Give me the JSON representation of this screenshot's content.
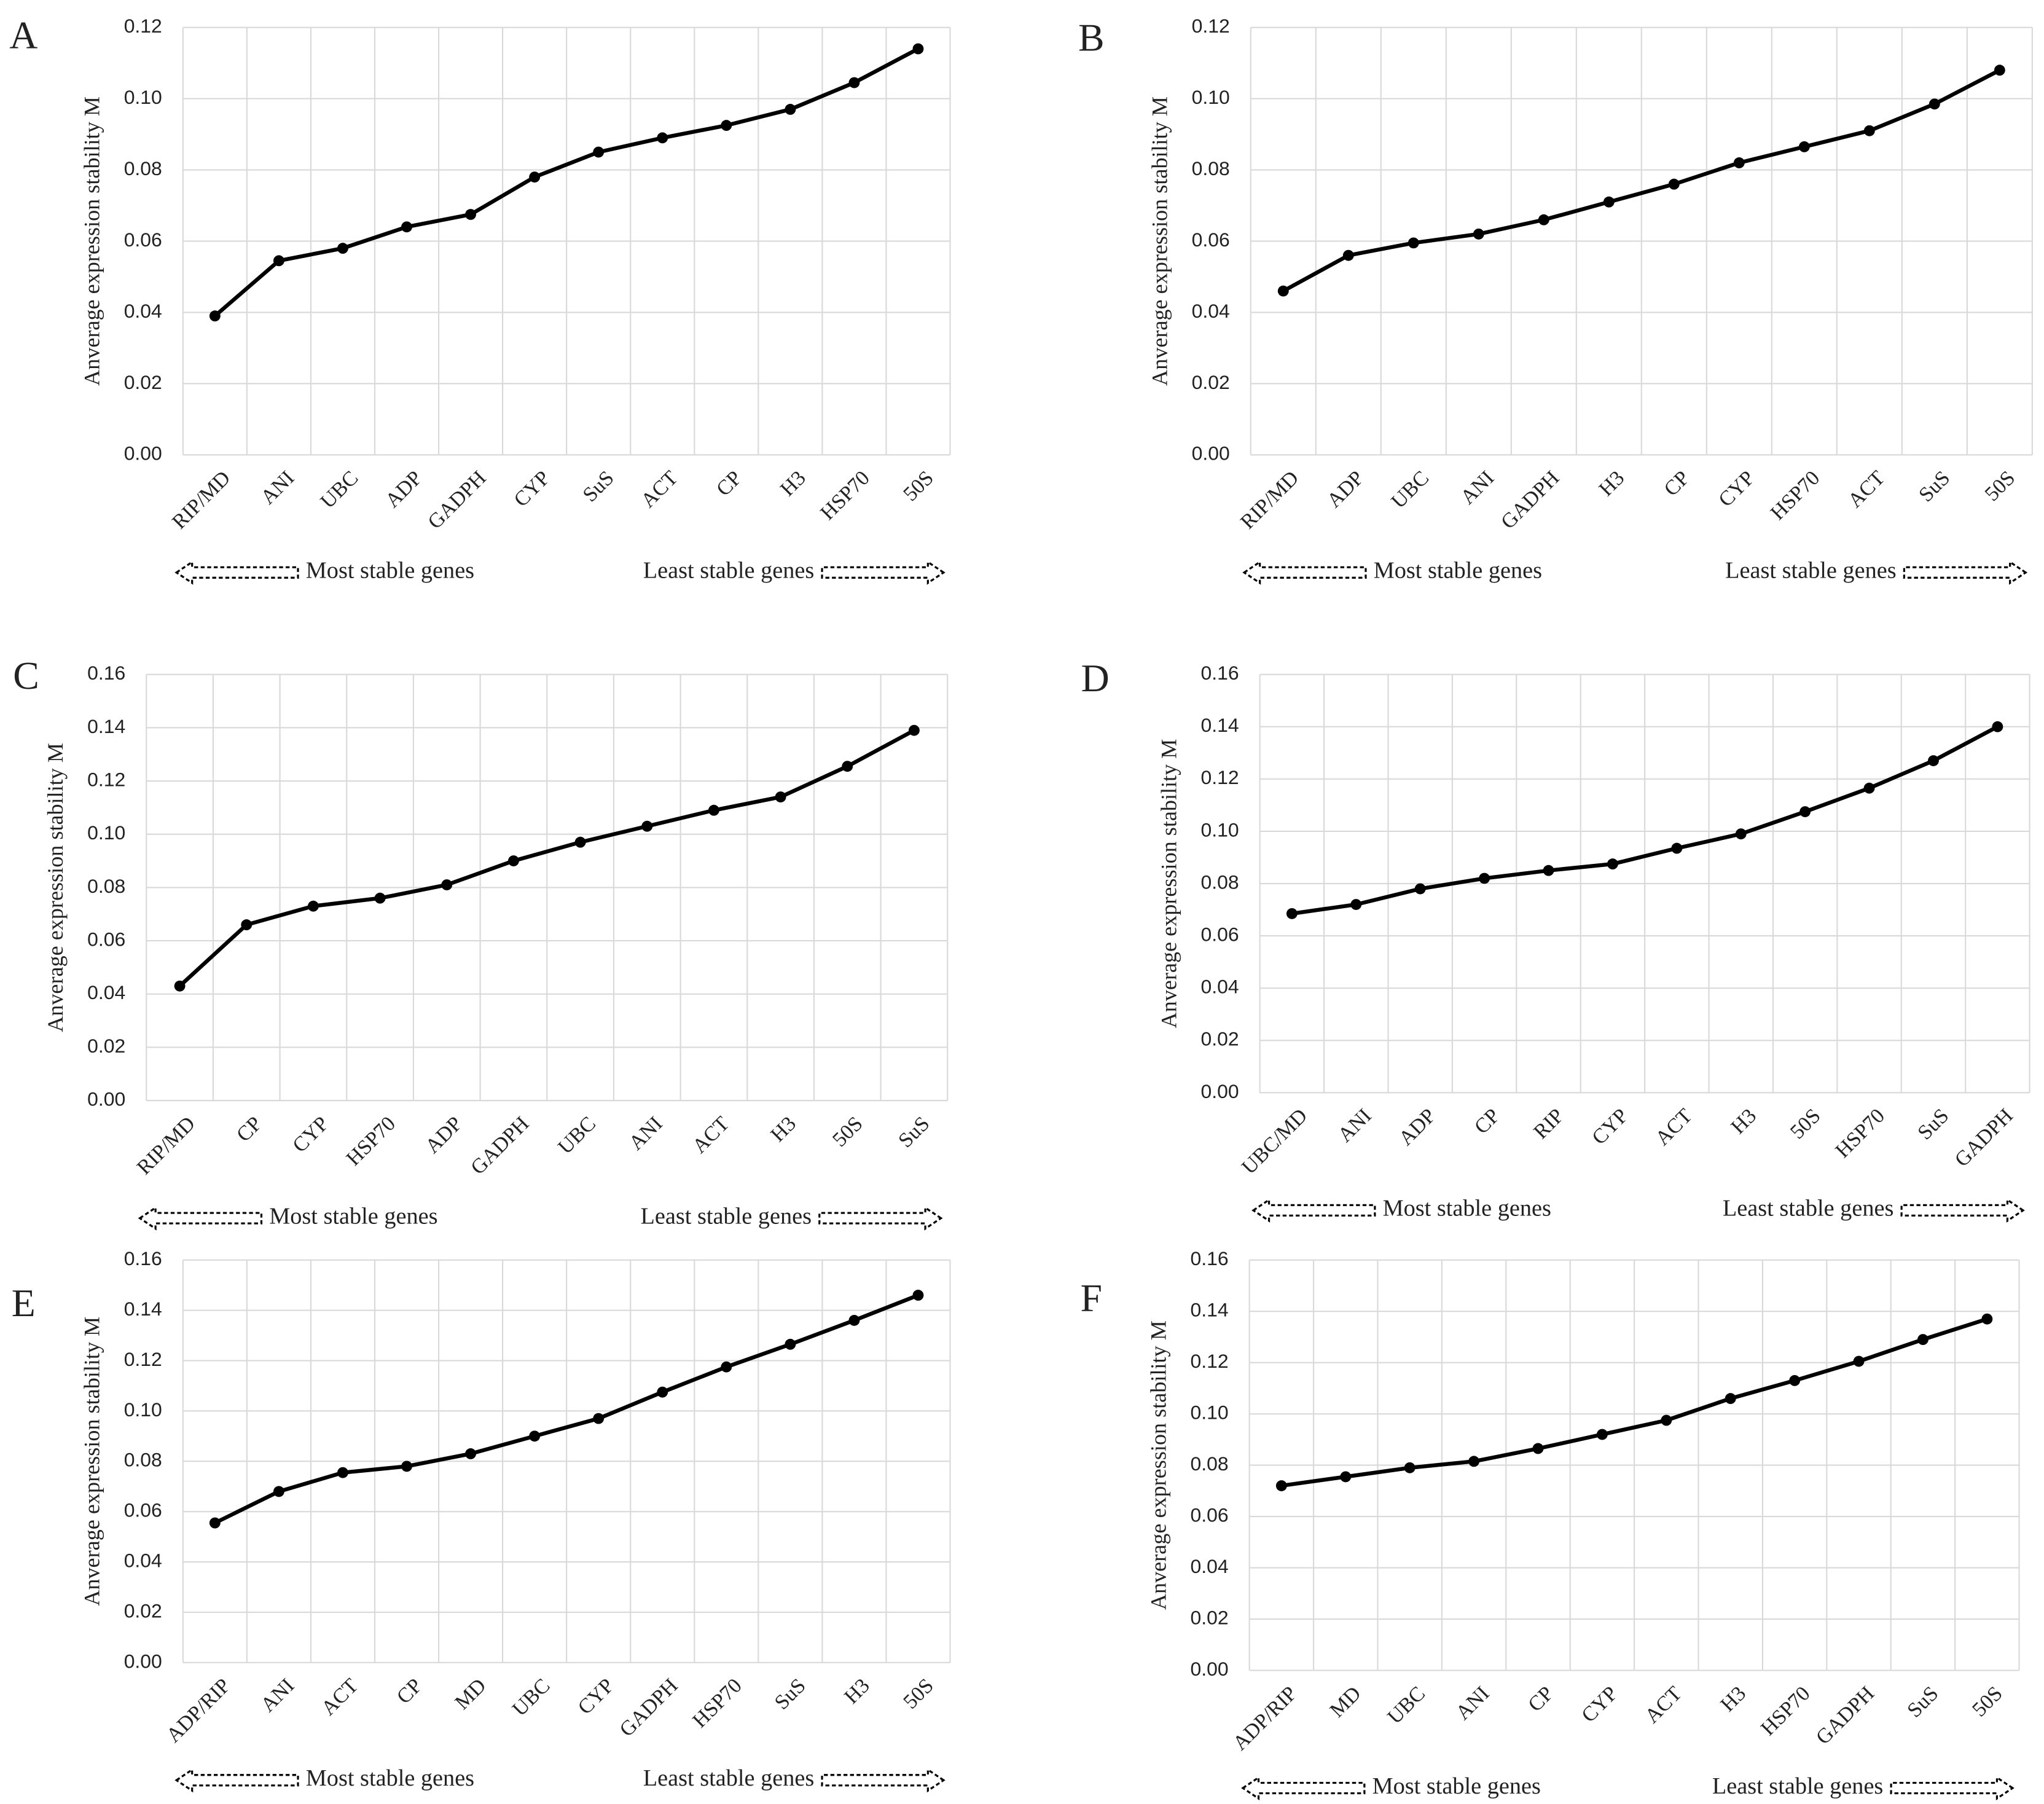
{
  "chart_data": [
    {
      "type": "line",
      "panel_label": "A",
      "y_label": "Anverage expression stability M",
      "categories": [
        "RIP/MD",
        "ANI",
        "UBC",
        "ADP",
        "GADPH",
        "CYP",
        "SuS",
        "ACT",
        "CP",
        "H3",
        "HSP70",
        "50S"
      ],
      "values": [
        0.039,
        0.0545,
        0.058,
        0.064,
        0.0675,
        0.078,
        0.085,
        0.089,
        0.0925,
        0.097,
        0.1045,
        0.114
      ],
      "color": "#000000",
      "ylim": [
        0,
        0.12
      ],
      "yticks": [
        {
          "value": 0,
          "label": "0.00"
        },
        0.02,
        0.04,
        0.06,
        0.08,
        {
          "value": 0.1,
          "label": "0.10"
        },
        0.12
      ],
      "grid": true,
      "most_stable_label": "Most stable genes",
      "least_stable_label": "Least stable genes"
    },
    {
      "type": "line",
      "panel_label": "B",
      "y_label": "Anverage expression stability M",
      "categories": [
        "RIP/MD",
        "ADP",
        "UBC",
        "ANI",
        "GADPH",
        "H3",
        "CP",
        "CYP",
        "HSP70",
        "ACT",
        "SuS",
        "50S"
      ],
      "values": [
        0.046,
        0.056,
        0.0595,
        0.062,
        0.066,
        0.071,
        0.076,
        0.082,
        0.0865,
        0.091,
        0.0985,
        0.108
      ],
      "color": "#000000",
      "ylim": [
        0,
        0.12
      ],
      "yticks": [
        {
          "value": 0,
          "label": "0.00"
        },
        0.02,
        0.04,
        0.06,
        0.08,
        {
          "value": 0.1,
          "label": "0.10"
        },
        0.12
      ],
      "grid": true,
      "most_stable_label": "Most stable genes",
      "least_stable_label": "Least stable genes"
    },
    {
      "type": "line",
      "panel_label": "C",
      "y_label": "Anverage expression stability M",
      "categories": [
        "RIP/MD",
        "CP",
        "CYP",
        "HSP70",
        "ADP",
        "GADPH",
        "UBC",
        "ANI",
        "ACT",
        "H3",
        "50S",
        "SuS"
      ],
      "values": [
        0.043,
        0.066,
        0.073,
        0.076,
        0.081,
        0.09,
        0.097,
        0.103,
        0.109,
        0.114,
        0.1255,
        0.139
      ],
      "color": "#000000",
      "ylim": [
        0,
        0.16
      ],
      "yticks": [
        {
          "value": 0,
          "label": "0.00"
        },
        0.02,
        0.04,
        0.06,
        0.08,
        {
          "value": 0.1,
          "label": "0.10"
        },
        0.12,
        0.14,
        0.16
      ],
      "grid": true,
      "most_stable_label": "Most stable genes",
      "least_stable_label": "Least stable genes"
    },
    {
      "type": "line",
      "panel_label": "D",
      "y_label": "Anverage expression stability M",
      "categories": [
        "UBC/MD",
        "ANI",
        "ADP",
        "CP",
        "RIP",
        "CYP",
        "ACT",
        "H3",
        "50S",
        "HSP70",
        "SuS",
        "GADPH"
      ],
      "values": [
        0.0685,
        0.072,
        0.078,
        0.082,
        0.085,
        0.0875,
        0.0935,
        0.099,
        0.1075,
        0.1165,
        0.127,
        0.14
      ],
      "color": "#000000",
      "ylim": [
        0,
        0.16
      ],
      "yticks": [
        {
          "value": 0,
          "label": "0.00"
        },
        0.02,
        0.04,
        0.06,
        0.08,
        {
          "value": 0.1,
          "label": "0.10"
        },
        0.12,
        0.14,
        0.16
      ],
      "grid": true,
      "most_stable_label": "Most stable genes",
      "least_stable_label": "Least stable genes"
    },
    {
      "type": "line",
      "panel_label": "E",
      "y_label": "Anverage expression stability M",
      "categories": [
        "ADP/RIP",
        "ANI",
        "ACT",
        "CP",
        "MD",
        "UBC",
        "CYP",
        "GADPH",
        "HSP70",
        "SuS",
        "H3",
        "50S"
      ],
      "values": [
        0.0555,
        0.068,
        0.0755,
        0.078,
        0.083,
        0.09,
        0.097,
        0.1075,
        0.1175,
        0.1265,
        0.136,
        0.146
      ],
      "color": "#000000",
      "ylim": [
        0,
        0.16
      ],
      "yticks": [
        {
          "value": 0,
          "label": "0.00"
        },
        0.02,
        0.04,
        0.06,
        0.08,
        {
          "value": 0.1,
          "label": "0.10"
        },
        0.12,
        0.14,
        0.16
      ],
      "grid": true,
      "most_stable_label": "Most stable genes",
      "least_stable_label": "Least stable genes"
    },
    {
      "type": "line",
      "panel_label": "F",
      "y_label": "Anverage expression stability M",
      "categories": [
        "ADP/RIP",
        "MD",
        "UBC",
        "ANI",
        "CP",
        "CYP",
        "ACT",
        "H3",
        "HSP70",
        "GADPH",
        "SuS",
        "50S"
      ],
      "values": [
        0.072,
        0.0755,
        0.079,
        0.0815,
        0.0865,
        0.092,
        0.0975,
        0.106,
        0.113,
        0.1205,
        0.129,
        0.137
      ],
      "color": "#000000",
      "ylim": [
        0,
        0.16
      ],
      "yticks": [
        {
          "value": 0,
          "label": "0.00"
        },
        0.02,
        0.04,
        0.06,
        0.08,
        {
          "value": 0.1,
          "label": "0.10"
        },
        0.12,
        0.14,
        0.16
      ],
      "grid": true,
      "most_stable_label": "Most stable genes",
      "least_stable_label": "Least stable genes"
    }
  ]
}
